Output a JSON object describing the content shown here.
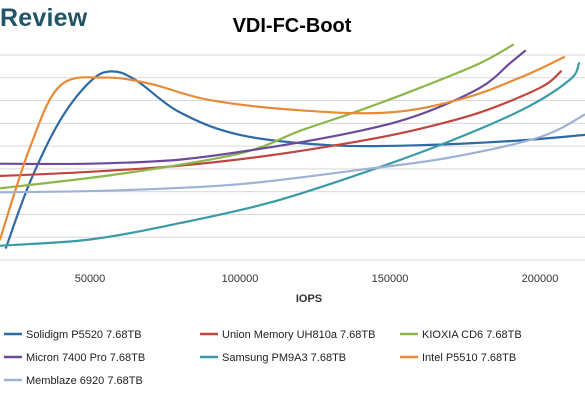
{
  "brand": "Review",
  "chart_data": {
    "type": "line",
    "title": "VDI-FC-Boot",
    "xlabel": "IOPS",
    "ylabel": "",
    "xlim": [
      20000,
      215000
    ],
    "x_ticks": [
      50000,
      100000,
      150000,
      200000
    ],
    "x_tick_labels": [
      "50000",
      "100000",
      "150000",
      "200000"
    ],
    "ylim": [
      0,
      1
    ],
    "y_gridlines": 9,
    "grid": true,
    "legend_position": "bottom",
    "series": [
      {
        "name": "Solidigm P5520 7.68TB",
        "color": "#2e6aa3",
        "x": [
          22000,
          30000,
          40000,
          50000,
          57000,
          65000,
          80000,
          100000,
          130000,
          160000,
          190000,
          215000
        ],
        "y": [
          0.06,
          0.38,
          0.68,
          0.87,
          0.92,
          0.88,
          0.72,
          0.61,
          0.56,
          0.56,
          0.58,
          0.61
        ]
      },
      {
        "name": "Union Memory UH810a 7.68TB",
        "color": "#c0453f",
        "x": [
          20000,
          50000,
          80000,
          110000,
          140000,
          160000,
          180000,
          200000,
          207000
        ],
        "y": [
          0.41,
          0.43,
          0.46,
          0.51,
          0.58,
          0.64,
          0.72,
          0.84,
          0.92
        ]
      },
      {
        "name": "KIOXIA CD6 7.68TB",
        "color": "#8db64a",
        "x": [
          20000,
          60000,
          100000,
          120000,
          140000,
          160000,
          180000,
          191000
        ],
        "y": [
          0.35,
          0.42,
          0.52,
          0.63,
          0.73,
          0.84,
          0.96,
          1.05
        ]
      },
      {
        "name": "Micron 7400 Pro 7.68TB",
        "color": "#6b4a9a",
        "x": [
          20000,
          50000,
          80000,
          110000,
          140000,
          160000,
          180000,
          190000,
          195000
        ],
        "y": [
          0.47,
          0.47,
          0.49,
          0.55,
          0.63,
          0.71,
          0.84,
          0.96,
          1.02
        ]
      },
      {
        "name": "Samsung PM9A3 7.68TB",
        "color": "#3a9aa8",
        "x": [
          20000,
          50000,
          80000,
          110000,
          140000,
          170000,
          195000,
          210000,
          213000
        ],
        "y": [
          0.07,
          0.1,
          0.18,
          0.28,
          0.42,
          0.58,
          0.74,
          0.88,
          0.96
        ]
      },
      {
        "name": "Intel P5510 7.68TB",
        "color": "#e88a36",
        "x": [
          20000,
          30000,
          40000,
          55000,
          70000,
          90000,
          120000,
          150000,
          175000,
          195000,
          208000
        ],
        "y": [
          0.1,
          0.55,
          0.85,
          0.89,
          0.86,
          0.78,
          0.73,
          0.72,
          0.79,
          0.9,
          0.99
        ]
      },
      {
        "name": "Memblaze 6920 7.68TB",
        "color": "#9fb1d6",
        "x": [
          20000,
          60000,
          100000,
          140000,
          170000,
          200000,
          215000
        ],
        "y": [
          0.33,
          0.34,
          0.37,
          0.44,
          0.5,
          0.6,
          0.71
        ]
      }
    ]
  }
}
